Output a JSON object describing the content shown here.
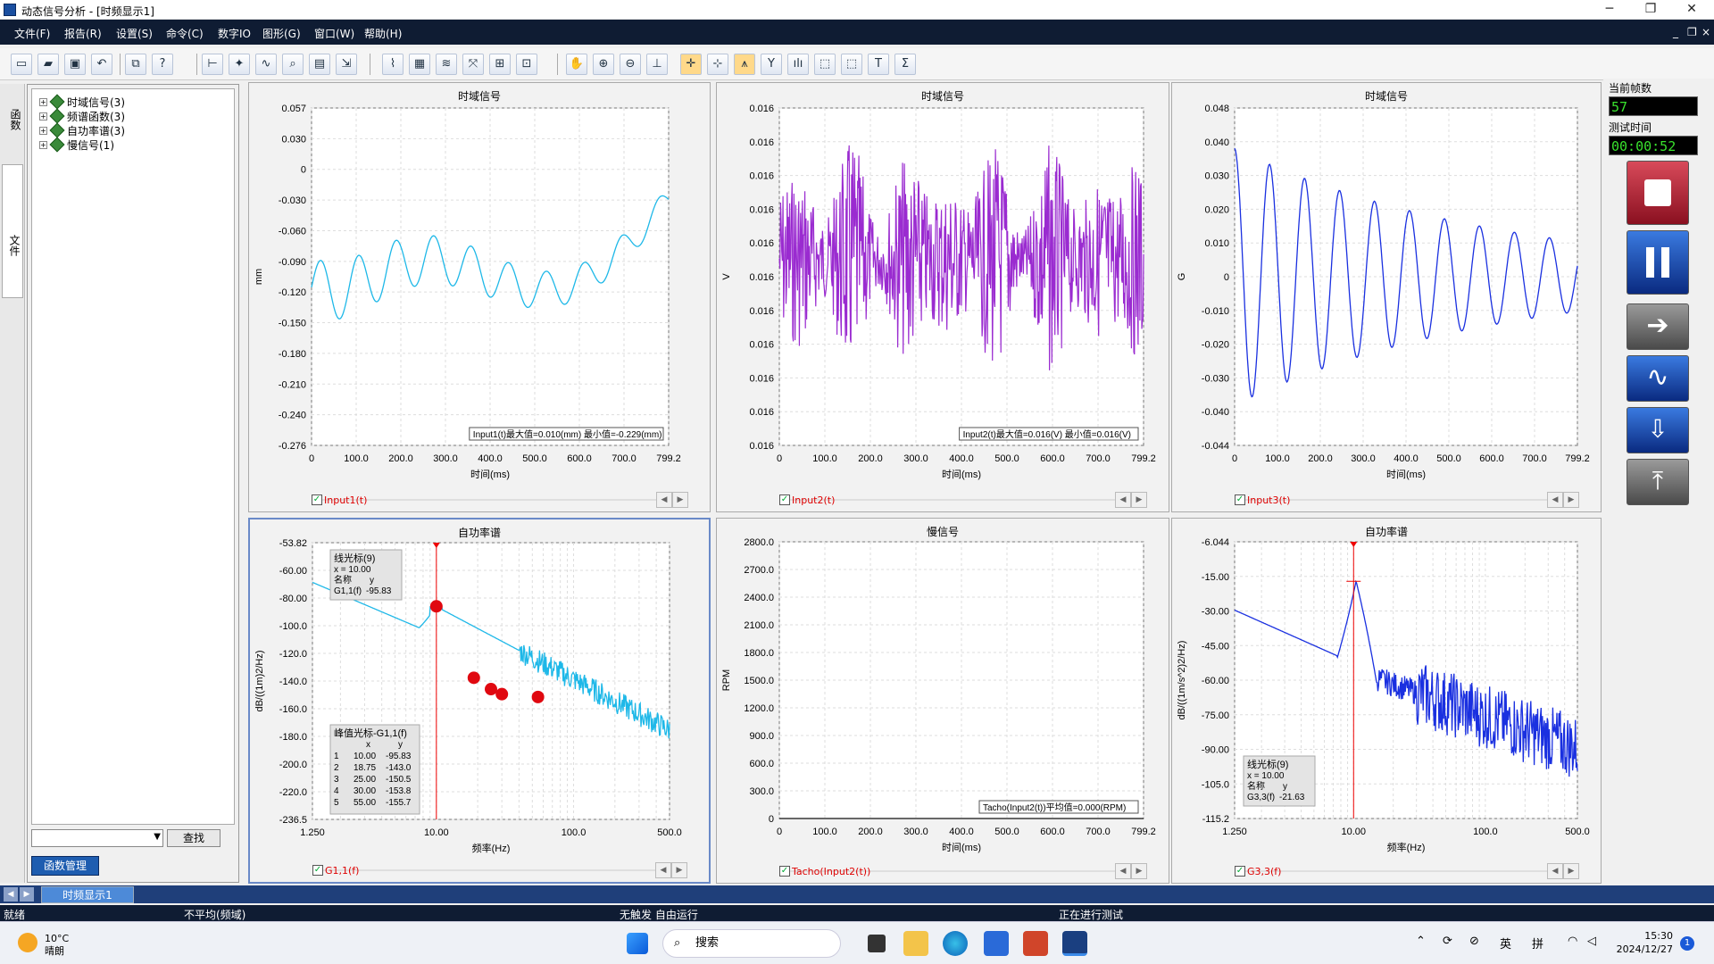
{
  "window": {
    "title": "动态信号分析 - [时频显示1]",
    "minimize": "─",
    "maximize": "❐",
    "close": "✕",
    "mdi_min": "_",
    "mdi_restore": "❐",
    "mdi_close": "×"
  },
  "menu": [
    "文件(F)",
    "报告(R)",
    "设置(S)",
    "命令(C)",
    "数字IO",
    "图形(G)",
    "窗口(W)",
    "帮助(H)"
  ],
  "left_tabs": [
    "函数",
    "文件"
  ],
  "tree": [
    {
      "label": "时域信号(3)"
    },
    {
      "label": "频谱函数(3)"
    },
    {
      "label": "自功率谱(3)"
    },
    {
      "label": "慢信号(1)"
    }
  ],
  "search": {
    "value": "",
    "button": "查找"
  },
  "func_manager": "函数管理",
  "right_panel": {
    "frames_label": "当前帧数",
    "frames_value": "57",
    "time_label": "测试时间",
    "time_value": "00:00:52"
  },
  "panels": [
    {
      "id": "p1",
      "title": "时域信号",
      "ylabel": "mm",
      "xlabel": "时间(ms)",
      "color": "#1eb8e8",
      "legend": "Input1(t)",
      "yticks": [
        "0.057",
        "0.030",
        "0",
        "-0.030",
        "-0.060",
        "-0.090",
        "-0.120",
        "-0.150",
        "-0.180",
        "-0.210",
        "-0.240",
        "-0.276"
      ],
      "xticks": [
        "0",
        "100.0",
        "200.0",
        "300.0",
        "400.0",
        "500.0",
        "600.0",
        "700.0",
        "799.2"
      ],
      "note": "Input1(t)最大值=0.010(mm) 最小值=-0.229(mm)"
    },
    {
      "id": "p2",
      "title": "时域信号",
      "ylabel": "V",
      "xlabel": "时间(ms)",
      "color": "#9a2bd0",
      "legend": "Input2(t)",
      "yticks": [
        "0.016",
        "0.016",
        "0.016",
        "0.016",
        "0.016",
        "0.016",
        "0.016",
        "0.016",
        "0.016",
        "0.016",
        "0.016"
      ],
      "xticks": [
        "0",
        "100.0",
        "200.0",
        "300.0",
        "400.0",
        "500.0",
        "600.0",
        "700.0",
        "799.2"
      ],
      "note": "Input2(t)最大值=0.016(V) 最小值=0.016(V)"
    },
    {
      "id": "p3",
      "title": "时域信号",
      "ylabel": "G",
      "xlabel": "时间(ms)",
      "color": "#1a30e0",
      "legend": "Input3(t)",
      "yticks": [
        "0.048",
        "0.040",
        "0.030",
        "0.020",
        "0.010",
        "0",
        "-0.010",
        "-0.020",
        "-0.030",
        "-0.040",
        "-0.044"
      ],
      "xticks": [
        "0",
        "100.0",
        "200.0",
        "300.0",
        "400.0",
        "500.0",
        "600.0",
        "700.0",
        "799.2"
      ],
      "note": ""
    },
    {
      "id": "p4",
      "title": "自功率谱",
      "ylabel": "dB/((1m)2/Hz)",
      "xlabel": "频率(Hz)",
      "color": "#1eb8e8",
      "legend": "G1,1(f)",
      "yticks": [
        "-53.82",
        "-60.00",
        "-80.00",
        "-100.0",
        "-120.0",
        "-140.0",
        "-160.0",
        "-180.0",
        "-200.0",
        "-220.0",
        "-236.5"
      ],
      "xticks": [
        "1.250",
        "10.00",
        "100.0",
        "500.0"
      ],
      "cursor": {
        "title": "线光标(9)",
        "x": "x = 10.00",
        "name_hdr": "名称",
        "y_hdr": "y",
        "name": "G1,1(f)",
        "y": "-95.83"
      },
      "peaks": {
        "title": "峰值光标-G1,1(f)",
        "x_hdr": "x",
        "y_hdr": "y",
        "rows": [
          [
            "1",
            "10.00",
            "-95.83"
          ],
          [
            "2",
            "18.75",
            "-143.0"
          ],
          [
            "3",
            "25.00",
            "-150.5"
          ],
          [
            "4",
            "30.00",
            "-153.8"
          ],
          [
            "5",
            "55.00",
            "-155.7"
          ]
        ]
      }
    },
    {
      "id": "p5",
      "title": "慢信号",
      "ylabel": "RPM",
      "xlabel": "时间(ms)",
      "color": "#111111",
      "legend": "Tacho(Input2(t))",
      "yticks": [
        "2800.0",
        "2700.0",
        "2400.0",
        "2100.0",
        "1800.0",
        "1500.0",
        "1200.0",
        "900.0",
        "600.0",
        "300.0",
        "0"
      ],
      "xticks": [
        "0",
        "100.0",
        "200.0",
        "300.0",
        "400.0",
        "500.0",
        "600.0",
        "700.0",
        "799.2"
      ],
      "note": "Tacho(Input2(t))平均值=0.000(RPM)"
    },
    {
      "id": "p6",
      "title": "自功率谱",
      "ylabel": "dB/((1m/s^2)2/Hz)",
      "xlabel": "频率(Hz)",
      "color": "#1a30e0",
      "legend": "G3,3(f)",
      "yticks": [
        "-6.044",
        "-15.00",
        "-30.00",
        "-45.00",
        "-60.00",
        "-75.00",
        "-90.00",
        "-105.0",
        "-115.2"
      ],
      "xticks": [
        "1.250",
        "10.00",
        "100.0",
        "500.0"
      ],
      "cursor": {
        "title": "线光标(9)",
        "x": "x = 10.00",
        "name_hdr": "名称",
        "y_hdr": "y",
        "name": "G3,3(f)",
        "y": "-21.63"
      }
    }
  ],
  "tabstrip": {
    "tab": "时频显示1"
  },
  "status": [
    "就绪",
    "不平均(频域)",
    "无触发  自由运行",
    "正在进行测试"
  ],
  "taskbar": {
    "temp": "10°C",
    "weather": "晴朗",
    "search": "搜索",
    "ime1": "英",
    "ime2": "拼",
    "time": "15:30",
    "date": "2024/12/27",
    "badge": "1"
  }
}
